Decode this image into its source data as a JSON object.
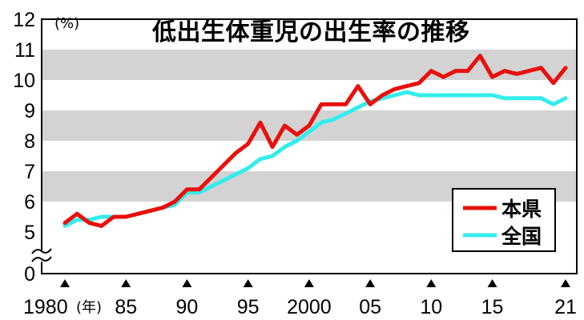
{
  "chart_data": {
    "type": "line",
    "title": "低出生体重児の出生率の推移",
    "ylabel": "(%)",
    "xlabel": "(年)",
    "ylim": [
      0,
      12
    ],
    "y_axis_break": [
      0,
      5
    ],
    "y_ticks": [
      "0",
      "5",
      "6",
      "7",
      "8",
      "9",
      "10",
      "11",
      "12"
    ],
    "x_ticks": [
      {
        "year": 1980,
        "label": "1980"
      },
      {
        "year": 1985,
        "label": "85"
      },
      {
        "year": 1990,
        "label": "90"
      },
      {
        "year": 1995,
        "label": "95"
      },
      {
        "year": 2000,
        "label": "2000"
      },
      {
        "year": 2005,
        "label": "05"
      },
      {
        "year": 2010,
        "label": "10"
      },
      {
        "year": 2015,
        "label": "15"
      },
      {
        "year": 2021,
        "label": "21"
      }
    ],
    "x": [
      1980,
      1981,
      1982,
      1983,
      1984,
      1985,
      1986,
      1987,
      1988,
      1989,
      1990,
      1991,
      1992,
      1993,
      1994,
      1995,
      1996,
      1997,
      1998,
      1999,
      2000,
      2001,
      2002,
      2003,
      2004,
      2005,
      2006,
      2007,
      2008,
      2009,
      2010,
      2011,
      2012,
      2013,
      2014,
      2015,
      2016,
      2017,
      2018,
      2019,
      2020,
      2021
    ],
    "series": [
      {
        "name": "本県",
        "color": "#e8100c",
        "values": [
          5.3,
          5.6,
          5.3,
          5.2,
          5.5,
          5.5,
          5.6,
          5.7,
          5.8,
          6.0,
          6.4,
          6.4,
          6.8,
          7.2,
          7.6,
          7.9,
          8.6,
          7.8,
          8.5,
          8.2,
          8.5,
          9.2,
          9.2,
          9.2,
          9.8,
          9.2,
          9.5,
          9.7,
          9.8,
          9.9,
          10.3,
          10.1,
          10.3,
          10.3,
          10.8,
          10.1,
          10.3,
          10.2,
          10.3,
          10.4,
          9.9,
          10.4
        ]
      },
      {
        "name": "全国",
        "color": "#35ecec",
        "values": [
          5.2,
          5.4,
          5.4,
          5.5,
          5.5,
          5.5,
          5.6,
          5.7,
          5.8,
          5.9,
          6.3,
          6.3,
          6.5,
          6.7,
          6.9,
          7.1,
          7.4,
          7.5,
          7.8,
          8.0,
          8.3,
          8.6,
          8.7,
          8.9,
          9.1,
          9.3,
          9.4,
          9.5,
          9.6,
          9.5,
          9.5,
          9.5,
          9.5,
          9.5,
          9.5,
          9.5,
          9.4,
          9.4,
          9.4,
          9.4,
          9.2,
          9.4
        ]
      }
    ],
    "legend_position": "lower-right",
    "colors": {
      "band": "#d3d3d3",
      "border": "#000000",
      "grid_band_between": [
        [
          6,
          7
        ],
        [
          8,
          9
        ],
        [
          10,
          11
        ]
      ]
    }
  }
}
